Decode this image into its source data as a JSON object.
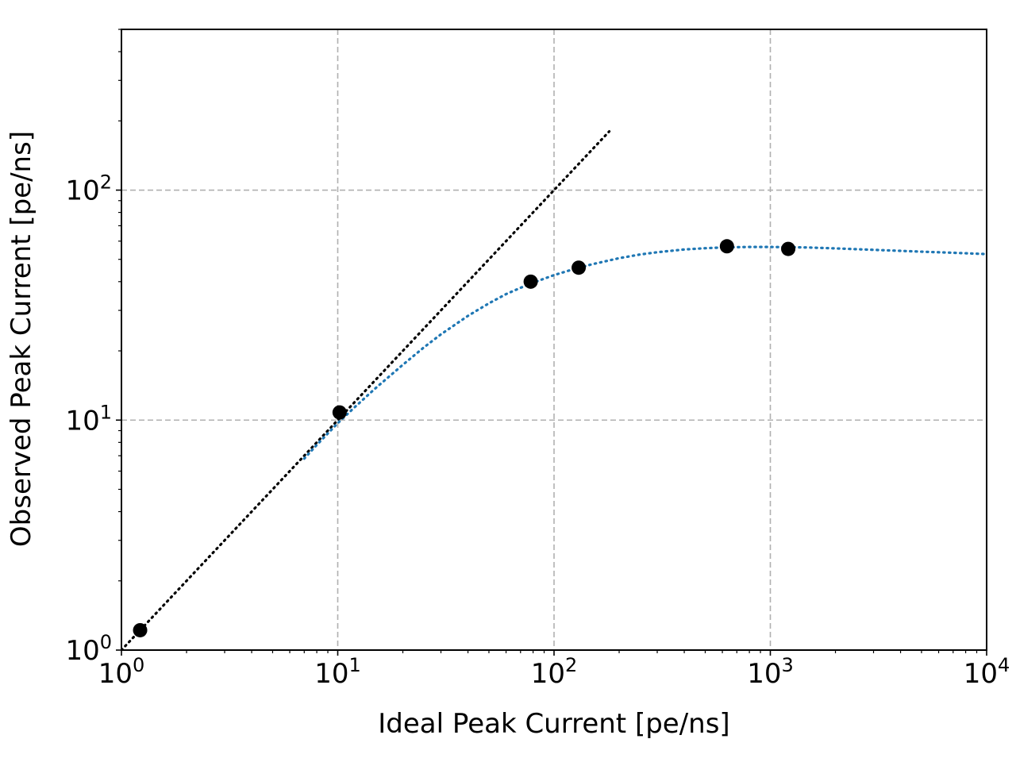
{
  "chart_data": {
    "type": "scatter",
    "title": "",
    "xlabel": "Ideal Peak Current [pe/ns]",
    "ylabel": "Observed Peak Current [pe/ns]",
    "xscale": "log",
    "yscale": "log",
    "xlim": [
      1,
      10000
    ],
    "ylim": [
      1,
      500
    ],
    "grid": true,
    "x_ticks": [
      {
        "base": "10",
        "exp": "0",
        "value": 1
      },
      {
        "base": "10",
        "exp": "1",
        "value": 10
      },
      {
        "base": "10",
        "exp": "2",
        "value": 100
      },
      {
        "base": "10",
        "exp": "3",
        "value": 1000
      },
      {
        "base": "10",
        "exp": "4",
        "value": 10000
      }
    ],
    "y_ticks": [
      {
        "base": "10",
        "exp": "0",
        "value": 1
      },
      {
        "base": "10",
        "exp": "1",
        "value": 10
      },
      {
        "base": "10",
        "exp": "2",
        "value": 100
      }
    ],
    "series": [
      {
        "kind": "points",
        "color": "#000000",
        "x": [
          1.22,
          10.2,
          78,
          130,
          630,
          1210
        ],
        "y": [
          1.22,
          10.8,
          40,
          46,
          57,
          55.5
        ]
      },
      {
        "kind": "ideal-line",
        "style": "dotted",
        "color": "#000000",
        "x": [
          1,
          180
        ],
        "y": [
          1,
          180
        ]
      },
      {
        "kind": "fit-curve",
        "style": "dotted",
        "color": "#1f77b4",
        "x": [
          7,
          8,
          10,
          12,
          15,
          20,
          25,
          30,
          40,
          50,
          60,
          70,
          80,
          100,
          120,
          150,
          200,
          250,
          300,
          400,
          500,
          600,
          700,
          800,
          1000,
          1200,
          1500,
          2000,
          3000,
          5000,
          7000,
          10000
        ],
        "y": [
          6.8,
          7.8,
          9.7,
          11.4,
          13.8,
          17.4,
          20.7,
          23.6,
          28.4,
          32.2,
          35.3,
          37.6,
          39.6,
          42.7,
          45.0,
          47.6,
          50.6,
          52.5,
          53.7,
          55.2,
          55.9,
          56.3,
          56.5,
          56.6,
          56.6,
          56.5,
          56.3,
          55.8,
          55.0,
          54.0,
          53.4,
          52.7
        ]
      }
    ]
  }
}
